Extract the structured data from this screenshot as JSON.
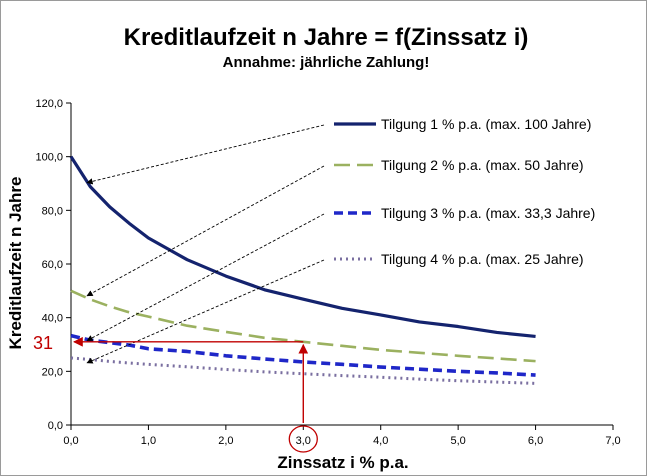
{
  "chart_data": {
    "type": "line",
    "title": "Kreditlaufzeit n Jahre = f(Zinssatz i)",
    "subtitle": "Annahme: jährliche Zahlung!",
    "xlabel": "Zinssatz  i % p.a.",
    "ylabel": "Kreditlaufzeit  n Jahre",
    "xlim": [
      0,
      7
    ],
    "ylim": [
      0,
      120
    ],
    "x_ticks": [
      "0,0",
      "1,0",
      "2,0",
      "3,0",
      "4,0",
      "5,0",
      "6,0",
      "7,0"
    ],
    "y_ticks": [
      "0,0",
      "20,0",
      "40,0",
      "60,0",
      "80,0",
      "100,0",
      "120,0"
    ],
    "grid": false,
    "legend_position": "top-right",
    "series": [
      {
        "name": "Tilgung 1 % p.a. (max. 100 Jahre)",
        "tilgung": 1,
        "color": "#14236e",
        "style": "solid",
        "x": [
          0,
          0.25,
          0.5,
          0.75,
          1,
          1.5,
          2,
          2.5,
          3,
          3.5,
          4,
          4.5,
          5,
          5.5,
          6
        ],
        "values": [
          100,
          88.8,
          81.3,
          75.2,
          69.7,
          61.6,
          55.5,
          50.4,
          46.9,
          43.5,
          41.0,
          38.4,
          36.7,
          34.5,
          33.0
        ]
      },
      {
        "name": "Tilgung 2 % p.a. (max. 50 Jahre)",
        "tilgung": 2,
        "color": "#9bb160",
        "style": "dashed-long",
        "x": [
          0,
          0.25,
          0.5,
          0.75,
          1,
          1.5,
          2,
          2.5,
          3,
          3.5,
          4,
          4.5,
          5,
          5.5,
          6
        ],
        "values": [
          50,
          46.8,
          44.2,
          42.0,
          40.4,
          37.0,
          34.7,
          32.5,
          31.0,
          29.5,
          28.0,
          26.9,
          25.8,
          24.8,
          23.8
        ]
      },
      {
        "name": "Tilgung 3 % p.a. (max. 33,3 Jahre)",
        "tilgung": 3,
        "color": "#1f27c8",
        "style": "dashed",
        "x": [
          0,
          0.25,
          0.5,
          0.75,
          1,
          1.5,
          2,
          2.5,
          3,
          3.5,
          4,
          4.5,
          5,
          5.5,
          6
        ],
        "values": [
          33.3,
          31.6,
          30.7,
          29.8,
          28.4,
          27.4,
          25.8,
          24.6,
          23.5,
          22.6,
          21.6,
          20.8,
          20.0,
          19.4,
          18.6
        ]
      },
      {
        "name": "Tilgung 4 % p.a. (max. 25 Jahre)",
        "tilgung": 4,
        "color": "#7a6fa0",
        "style": "dotted",
        "x": [
          0,
          0.25,
          0.5,
          0.75,
          1,
          1.5,
          2,
          2.5,
          3,
          3.5,
          4,
          4.5,
          5,
          5.5,
          6
        ],
        "values": [
          25,
          24.4,
          23.7,
          23.1,
          22.6,
          21.7,
          20.7,
          19.8,
          19.1,
          18.4,
          17.8,
          17.1,
          16.5,
          16.0,
          15.5
        ]
      }
    ],
    "annotation": {
      "label": "31",
      "x": 3.0,
      "y": 31,
      "color": "#c00000"
    }
  }
}
